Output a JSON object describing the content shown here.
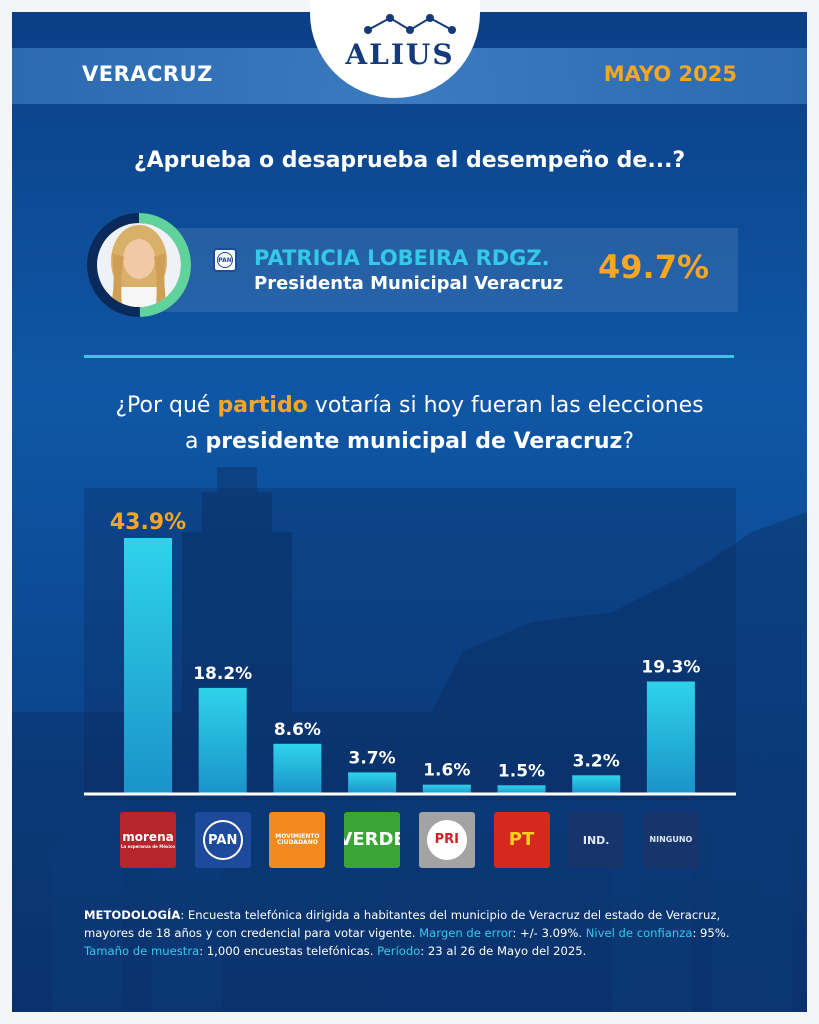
{
  "header": {
    "brand": "ALIUS",
    "region": "VERACRUZ",
    "date": "MAYO 2025"
  },
  "approval_question": "¿Aprueba o desaprueba el desempeño de...?",
  "person": {
    "party_logo": "PAN",
    "name": "PATRICIA LOBEIRA RDGZ.",
    "role": "Presidenta Municipal Veracruz",
    "approval_value": 49.7,
    "approval_label": "49.7%"
  },
  "vote_question": {
    "part1": "¿Por qué ",
    "highlight1": "partido",
    "part2": " votaría si hoy fueran las elecciones",
    "part3": "a ",
    "highlight2": "presidente municipal de Veracruz",
    "part4": "?"
  },
  "colors": {
    "accent_orange": "#f6a623",
    "accent_cyan": "#35c9e8",
    "bar_top": "#2fd3ea",
    "bar_bottom": "#1a93c9"
  },
  "chart_data": {
    "type": "bar",
    "categories": [
      "MORENA",
      "PAN",
      "MC",
      "VERDE",
      "PRI",
      "PT",
      "IND.",
      "NINGUNO"
    ],
    "values": [
      43.9,
      18.2,
      8.6,
      3.7,
      1.6,
      1.5,
      3.2,
      19.3
    ],
    "labels": [
      "43.9%",
      "18.2%",
      "8.6%",
      "3.7%",
      "1.6%",
      "1.5%",
      "3.2%",
      "19.3%"
    ],
    "highlight_index": 0,
    "ylim": [
      0,
      46
    ],
    "grid": false,
    "title": "",
    "xlabel": "",
    "ylabel": ""
  },
  "party_logos": [
    {
      "name": "morena-logo",
      "text": "morena",
      "subtext": "La esperanza de México",
      "bg": "#b5252b",
      "fg": "#ffffff"
    },
    {
      "name": "pan-logo",
      "text": "PAN",
      "bg": "#1d4a9a",
      "fg": "#ffffff"
    },
    {
      "name": "mc-logo",
      "text": "MOVIMIENTO CIUDADANO",
      "bg": "#f28a1d",
      "fg": "#ffffff"
    },
    {
      "name": "verde-logo",
      "text": "VERDE",
      "bg": "#3aa535",
      "fg": "#ffffff"
    },
    {
      "name": "pri-logo",
      "text": "PRI",
      "bg": "#a3a3a3",
      "fg": "#ffffff"
    },
    {
      "name": "pt-logo",
      "text": "PT",
      "bg": "#d6281f",
      "fg": "#f7d21b"
    },
    {
      "name": "ind-logo",
      "text": "IND.",
      "bg": "#17356b",
      "fg": "#dfe8f5"
    },
    {
      "name": "ninguno-logo",
      "text": "NINGUNO",
      "bg": "#17356b",
      "fg": "#dfe8f5"
    }
  ],
  "methodology": {
    "label": "METODOLOGÍA",
    "text1": ": Encuesta telefónica dirigida a habitantes del municipio de Veracruz del estado de Veracruz, mayores de 18 años y con credencial para votar vigente. ",
    "margin_label": "Margen de error",
    "margin_value": ": +/- 3.09%. ",
    "confidence_label": "Nivel de confianza",
    "confidence_value": ": 95%. ",
    "sample_label": "Tamaño de muestra",
    "sample_value": ": 1,000 encuestas telefónicas. ",
    "period_label": "Período",
    "period_value": ": 23 al 26 de Mayo del 2025."
  }
}
